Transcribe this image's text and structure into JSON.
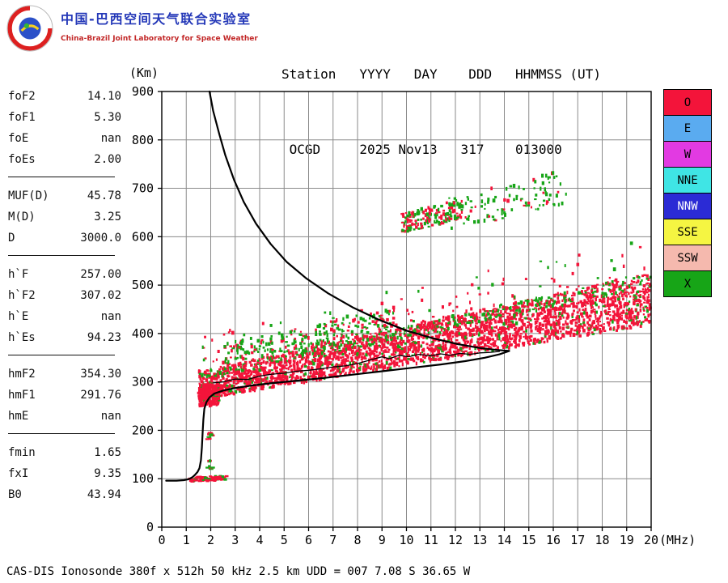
{
  "header": {
    "logo_title_cn": "中国-巴西空间天气联合实验室",
    "logo_title_en": "China-Brazil Joint Laboratory for Space Weather",
    "station_labels": "Station   YYYY   DAY    DDD   HHMMSS (UT)",
    "station_values": " OCGD     2025 Nov13   317    013000"
  },
  "parameters": {
    "groups": [
      {
        "rows": [
          {
            "label": "foF2",
            "value": "14.10"
          },
          {
            "label": "foF1",
            "value": "5.30"
          },
          {
            "label": "foE",
            "value": "nan"
          },
          {
            "label": "foEs",
            "value": "2.00"
          }
        ]
      },
      {
        "rows": [
          {
            "label": "MUF(D)",
            "value": "45.78"
          },
          {
            "label": "M(D)",
            "value": "3.25"
          },
          {
            "label": "D",
            "value": "3000.0"
          }
        ]
      },
      {
        "rows": [
          {
            "label": "h`F",
            "value": "257.00"
          },
          {
            "label": "h`F2",
            "value": "307.02"
          },
          {
            "label": "h`E",
            "value": "nan"
          },
          {
            "label": "h`Es",
            "value": "94.23"
          }
        ]
      },
      {
        "rows": [
          {
            "label": "hmF2",
            "value": "354.30"
          },
          {
            "label": "hmF1",
            "value": "291.76"
          },
          {
            "label": "hmE",
            "value": "nan"
          }
        ]
      },
      {
        "rows": [
          {
            "label": "fmin",
            "value": "1.65"
          },
          {
            "label": "fxI",
            "value": "9.35"
          },
          {
            "label": "B0",
            "value": "43.94"
          }
        ]
      }
    ]
  },
  "legend": {
    "items": [
      {
        "label": "O",
        "color": "#f3143a",
        "text": "#000000"
      },
      {
        "label": "E",
        "color": "#5aabf0",
        "text": "#000000"
      },
      {
        "label": "W",
        "color": "#e23ae2",
        "text": "#000000"
      },
      {
        "label": "NNE",
        "color": "#3fe5e5",
        "text": "#000000"
      },
      {
        "label": "NNW",
        "color": "#2b2bd5",
        "text": "#ffffff"
      },
      {
        "label": "SSE",
        "color": "#f5f542",
        "text": "#000000"
      },
      {
        "label": "SSW",
        "color": "#f5b9ae",
        "text": "#000000"
      },
      {
        "label": "X",
        "color": "#17a517",
        "text": "#000000"
      }
    ]
  },
  "footer": {
    "text": "CAS-DIS Ionosonde 380f x 512h 50 kHz 2.5 km UDD = 007 7.08 S 36.65 W"
  },
  "chart_data": {
    "type": "scatter",
    "title": "Ionogram echo traces with MUF transmission curve and true-height profile",
    "xlabel": "(MHz)",
    "ylabel": "(Km)",
    "xlim": [
      0,
      20
    ],
    "ylim": [
      0,
      900
    ],
    "grid": true,
    "x_ticks": [
      0,
      1,
      2,
      3,
      4,
      5,
      6,
      7,
      8,
      9,
      10,
      11,
      12,
      13,
      14,
      15,
      16,
      17,
      18,
      19,
      20
    ],
    "y_ticks": [
      0,
      100,
      200,
      300,
      400,
      500,
      600,
      700,
      800,
      900
    ],
    "colors": {
      "o_mode": "#f3143a",
      "x_mode": "#17a517",
      "curve": "#000000",
      "grid": "#8a8a8a"
    },
    "seed": 1337,
    "echo_bands": [
      {
        "name": "main-f-trace",
        "x": [
          1.5,
          20.0
        ],
        "count": 3200,
        "bottom": [
          250,
          8.4
        ],
        "thick": [
          55,
          2.6
        ],
        "out_frac": 0.1,
        "out_span": 85,
        "green": 0.16,
        "edge_green": true
      },
      {
        "name": "f-trace-start-blob",
        "x": [
          1.55,
          2.35
        ],
        "count": 240,
        "bottom": [
          245,
          3.0
        ],
        "thick": [
          45,
          0
        ],
        "green": 0.05
      },
      {
        "name": "above-band-sprinkle",
        "x": [
          2.5,
          9.5
        ],
        "count": 190,
        "bottom": [
          305,
          11
        ],
        "thick": [
          45,
          0
        ],
        "green": 0.72
      },
      {
        "name": "second-hop-cluster",
        "x": [
          9.8,
          12.3
        ],
        "count": 170,
        "bottom": [
          500,
          11
        ],
        "thick": [
          42,
          0
        ],
        "green": 0.5
      },
      {
        "name": "second-hop-sparse",
        "x": [
          11.5,
          16.6
        ],
        "count": 110,
        "bottom": [
          470,
          12
        ],
        "thick": [
          70,
          0
        ],
        "green": 0.82
      },
      {
        "name": "es-trace",
        "x": [
          1.15,
          2.65
        ],
        "count": 70,
        "bottom": [
          92,
          2
        ],
        "thick": [
          9,
          0
        ],
        "green": 0.18,
        "dash": "h"
      },
      {
        "name": "e-region-marks-upper",
        "x": [
          1.8,
          2.1
        ],
        "count": 10,
        "bottom": [
          180,
          0
        ],
        "thick": [
          16,
          0
        ],
        "green": 0.1,
        "dash": "h"
      },
      {
        "name": "e-region-marks-lower",
        "x": [
          1.8,
          2.15
        ],
        "count": 8,
        "bottom": [
          118,
          0
        ],
        "thick": [
          20,
          0
        ],
        "green": 0.35,
        "dash": "h"
      }
    ],
    "curves": {
      "transmission_curve": {
        "width": 2.2,
        "points": [
          [
            1.95,
            900
          ],
          [
            2.1,
            860
          ],
          [
            2.35,
            812
          ],
          [
            2.6,
            768
          ],
          [
            2.95,
            718
          ],
          [
            3.35,
            672
          ],
          [
            3.85,
            627
          ],
          [
            4.45,
            585
          ],
          [
            5.1,
            548
          ],
          [
            5.9,
            514
          ],
          [
            6.8,
            483
          ],
          [
            7.8,
            454
          ],
          [
            8.9,
            428
          ],
          [
            10.0,
            406
          ],
          [
            11.1,
            390
          ],
          [
            12.1,
            378
          ],
          [
            13.0,
            370
          ],
          [
            13.7,
            366
          ],
          [
            14.2,
            364
          ]
        ]
      },
      "profile_curve": {
        "width": 2.2,
        "points": [
          [
            14.2,
            364
          ],
          [
            13.8,
            357
          ],
          [
            13.2,
            350
          ],
          [
            12.4,
            343
          ],
          [
            11.4,
            336
          ],
          [
            10.2,
            329
          ],
          [
            9.0,
            322
          ],
          [
            7.8,
            315
          ],
          [
            6.6,
            308
          ],
          [
            5.4,
            302
          ],
          [
            4.4,
            297
          ],
          [
            3.6,
            292
          ],
          [
            2.95,
            287
          ],
          [
            2.5,
            282
          ],
          [
            2.15,
            276
          ],
          [
            1.95,
            268
          ],
          [
            1.82,
            258
          ],
          [
            1.74,
            244
          ],
          [
            1.7,
            222
          ],
          [
            1.67,
            195
          ],
          [
            1.64,
            165
          ],
          [
            1.6,
            138
          ],
          [
            1.54,
            122
          ],
          [
            1.46,
            114
          ],
          [
            1.36,
            108
          ],
          [
            1.25,
            103
          ],
          [
            1.1,
            99
          ],
          [
            0.9,
            97
          ],
          [
            0.6,
            96
          ],
          [
            0.3,
            96
          ],
          [
            0.18,
            96
          ]
        ]
      },
      "scaled_trace": {
        "width": 1.3,
        "points": [
          [
            2.1,
            298
          ],
          [
            2.5,
            300
          ],
          [
            3.0,
            306
          ],
          [
            3.5,
            305
          ],
          [
            4.0,
            312
          ],
          [
            4.5,
            316
          ],
          [
            5.0,
            318
          ],
          [
            5.5,
            322
          ],
          [
            6.0,
            324
          ],
          [
            6.5,
            327
          ],
          [
            7.0,
            331
          ],
          [
            7.5,
            333
          ],
          [
            8.0,
            338
          ],
          [
            8.5,
            345
          ],
          [
            9.0,
            352
          ],
          [
            9.3,
            348
          ],
          [
            9.7,
            355
          ],
          [
            10.1,
            352
          ],
          [
            10.5,
            357
          ],
          [
            11.0,
            354
          ],
          [
            11.4,
            358
          ],
          [
            11.8,
            355
          ],
          [
            12.2,
            359
          ],
          [
            12.6,
            357
          ],
          [
            13.0,
            360
          ],
          [
            13.4,
            361
          ],
          [
            13.8,
            363
          ]
        ]
      }
    }
  }
}
